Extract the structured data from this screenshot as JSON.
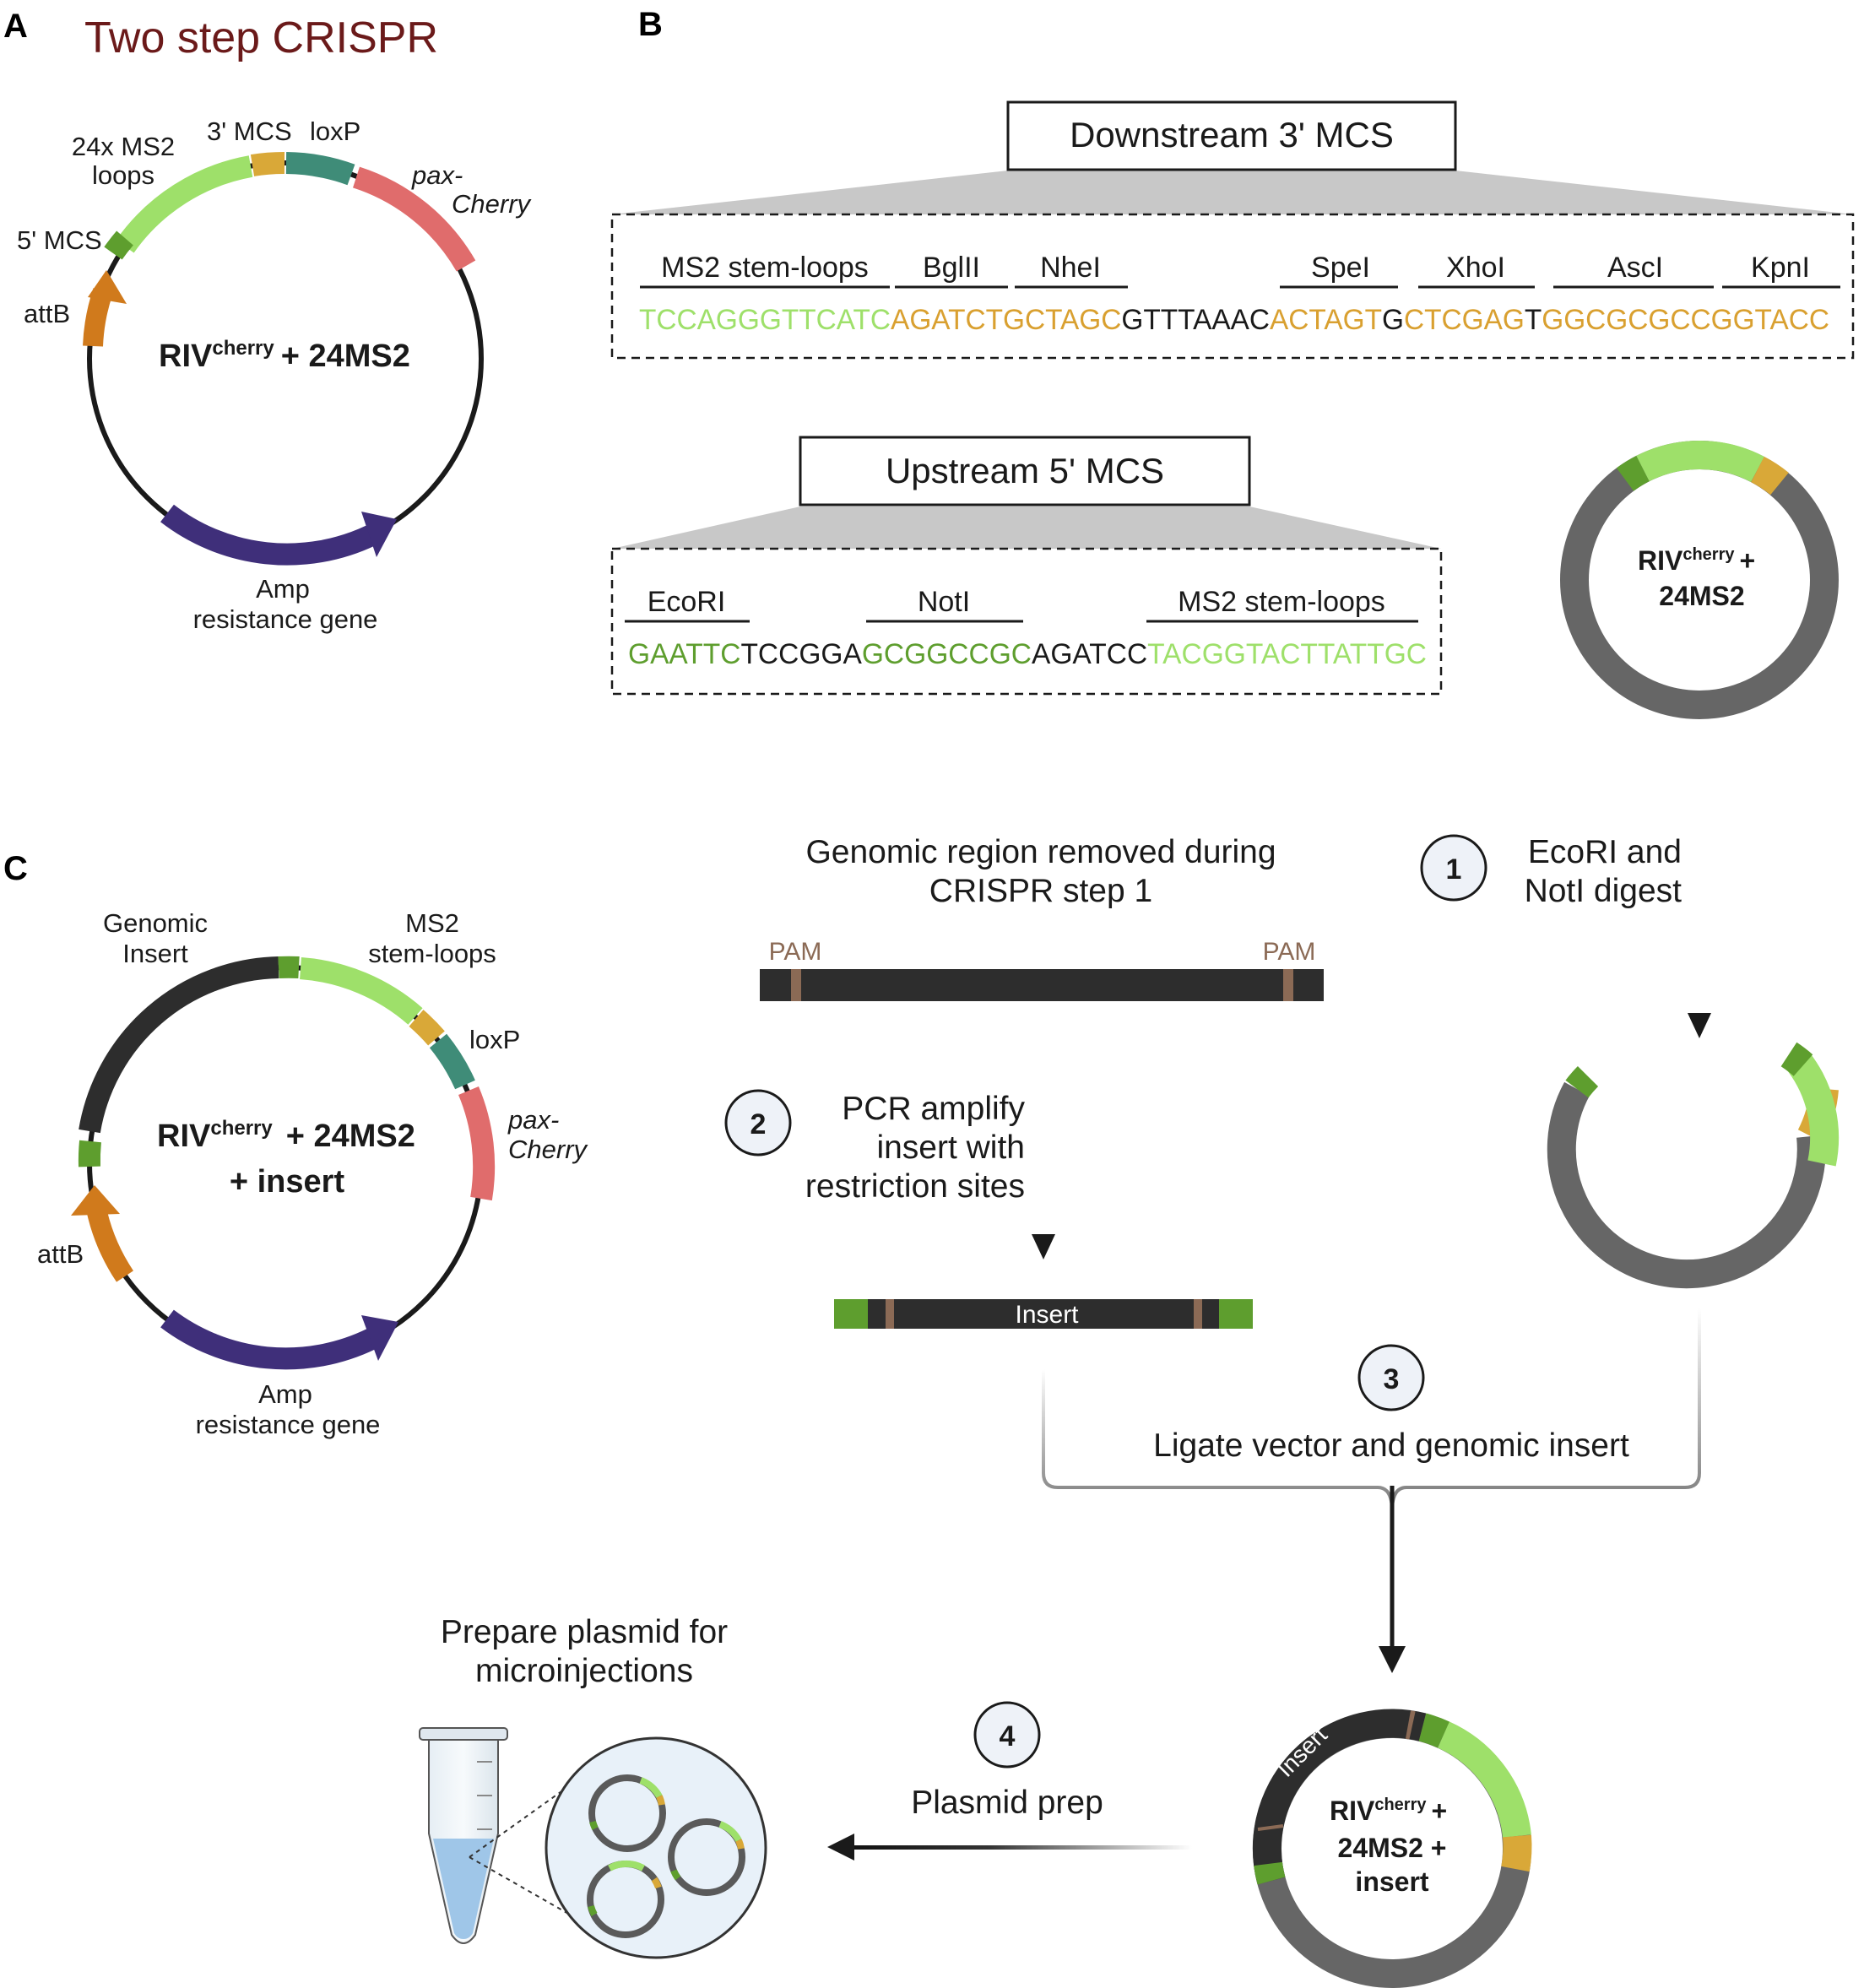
{
  "panels": {
    "a": "A",
    "b": "B",
    "c": "C"
  },
  "title": "Two step CRISPR",
  "colors": {
    "title": "#6b1a1a",
    "ms2_light_green": "#9ee06a",
    "mcs_dark_green": "#5e9e2e",
    "mcs_gold": "#d9a838",
    "loxp_teal": "#3f8c78",
    "cherry_red": "#e06c6c",
    "attb_orange": "#d07a1c",
    "amp_purple": "#3f2f7a",
    "pam_brown": "#8b6a55",
    "backbone_gray": "#666666",
    "sequence_gold": "#d9a030",
    "box_fill": "#c8c8c8"
  },
  "plasmidA": {
    "label_main": "RIV",
    "label_sup": "cherry",
    "label_rest": "+ 24MS2",
    "ms2_line1": "24x MS2",
    "ms2_line2": "loops",
    "mcs3": "3' MCS",
    "loxp": "loxP",
    "pax": "pax-",
    "cherry": "Cherry",
    "mcs5": "5' MCS",
    "attb": "attB",
    "amp_line1": "Amp",
    "amp_line2": "resistance gene"
  },
  "downstream": {
    "title": "Downstream 3' MCS",
    "sites": [
      "MS2 stem-loops",
      "BglII",
      "NheI",
      "SpeI",
      "XhoI",
      "AscI",
      "KpnI"
    ],
    "seq": [
      {
        "t": "TCCAGGGTTCATC",
        "c": "#9ee06a"
      },
      {
        "t": "AGATCTGCTAGC",
        "c": "#d9a030"
      },
      {
        "t": "GTTTAAAC",
        "c": "#1a1a1a"
      },
      {
        "t": "ACTAGT",
        "c": "#d9a030"
      },
      {
        "t": "G",
        "c": "#1a1a1a"
      },
      {
        "t": "CTCGAG",
        "c": "#d9a030"
      },
      {
        "t": "T",
        "c": "#1a1a1a"
      },
      {
        "t": "GGCGCGCCGGTACC",
        "c": "#d9a030"
      }
    ]
  },
  "upstream": {
    "title": "Upstream 5' MCS",
    "sites": [
      "EcoRI",
      "NotI",
      "MS2 stem-loops"
    ],
    "seq": [
      {
        "t": "GAATTC",
        "c": "#5e9e2e"
      },
      {
        "t": "TCCGGA",
        "c": "#1a1a1a"
      },
      {
        "t": "GCGGCCGC",
        "c": "#5e9e2e"
      },
      {
        "t": "AGATCC",
        "c": "#1a1a1a"
      },
      {
        "t": "TACGGTACTTATTGC",
        "c": "#9ee06a"
      }
    ]
  },
  "ringB": {
    "line1_main": "RIV",
    "line1_sup": "cherry",
    "line1_rest": "+",
    "line2": "24MS2"
  },
  "steps": {
    "s1": {
      "num": "1",
      "line1": "EcoRI and",
      "line2": "NotI digest"
    },
    "s2": {
      "num": "2",
      "line1": "PCR amplify",
      "line2": "insert with",
      "line3": "restriction sites"
    },
    "s3": {
      "num": "3",
      "line1": "Ligate vector and genomic insert"
    },
    "s4": {
      "num": "4",
      "line1": "Plasmid prep"
    }
  },
  "genomic": {
    "title1": "Genomic region removed during",
    "title2": "CRISPR step 1",
    "pam": "PAM"
  },
  "insert_bar": "Insert",
  "plasmidC": {
    "label_main": "RIV",
    "label_sup": "cherry",
    "label_rest": "+ 24MS2",
    "label_line2": "+ insert",
    "genomic1": "Genomic",
    "genomic2": "Insert",
    "ms2_1": "MS2",
    "ms2_2": "stem-loops",
    "loxp": "loxP",
    "pax": "pax-",
    "cherry": "Cherry",
    "attb": "attB",
    "amp_line1": "Amp",
    "amp_line2": "resistance gene"
  },
  "final_ring": {
    "insert_label": "Insert",
    "line1_main": "RIV",
    "line1_sup": "cherry",
    "line1_rest": "+",
    "line2": "24MS2 +",
    "line3": "insert"
  },
  "prep": {
    "line1": "Prepare plasmid for",
    "line2": "microinjections"
  }
}
